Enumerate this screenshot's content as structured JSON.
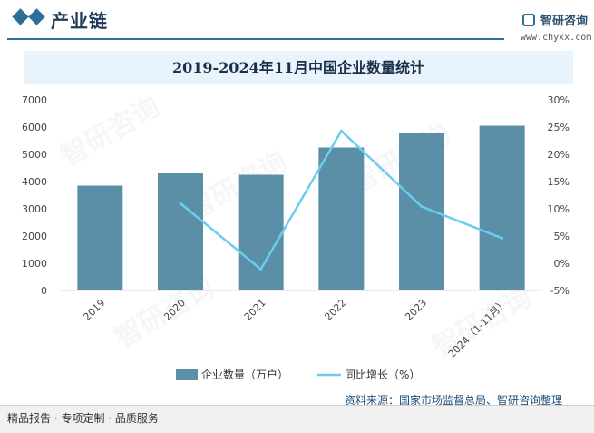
{
  "header": {
    "section_title": "产业链",
    "brand_name": "智研咨询",
    "brand_url": "www.chyxx.com"
  },
  "watermark": "智研咨询",
  "footer": {
    "left": "精品报告 · 专项定制 · 品质服务",
    "source": "资料来源：国家市场监督总局、智研咨询整理"
  },
  "chart_data": {
    "type": "bar",
    "title": "2019-2024年11月中国企业数量统计",
    "categories": [
      "2019",
      "2020",
      "2021",
      "2022",
      "2023",
      "2024（1-11月）"
    ],
    "series": [
      {
        "name": "企业数量（万户）",
        "type": "bar",
        "axis": "left",
        "color": "#5b8fa8",
        "values": [
          3850,
          4300,
          4250,
          5250,
          5800,
          6050
        ]
      },
      {
        "name": "同比增长（%）",
        "type": "line",
        "axis": "right",
        "color": "#6ccbf0",
        "values": [
          null,
          11.0,
          -1.1,
          24.3,
          10.4,
          4.6
        ]
      }
    ],
    "left_axis": {
      "min": 0,
      "max": 7000,
      "ticks": [
        "0",
        "1000",
        "2000",
        "3000",
        "4000",
        "5000",
        "6000",
        "7000"
      ]
    },
    "right_axis": {
      "min": -5,
      "max": 30,
      "ticks": [
        "-5%",
        "0%",
        "5%",
        "10%",
        "15%",
        "20%",
        "25%",
        "30%"
      ]
    },
    "legend": "bottom-center",
    "grid": false
  }
}
